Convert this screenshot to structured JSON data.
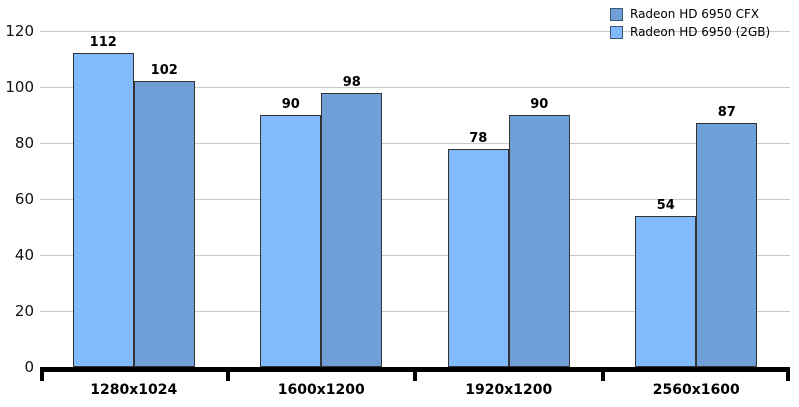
{
  "chart_data": {
    "type": "bar",
    "title": "",
    "xlabel": "",
    "ylabel": "",
    "categories": [
      "1280x1024",
      "1600x1200",
      "1920x1200",
      "2560x1600"
    ],
    "series": [
      {
        "name": "Radeon HD 6950 (2GB)",
        "color": "#82BBFD",
        "values": [
          112,
          90,
          78,
          54
        ]
      },
      {
        "name": "Radeon HD 6950 CFX",
        "color": "#6EA0D7",
        "values": [
          102,
          98,
          90,
          87
        ]
      }
    ],
    "value_labels": [
      [
        112,
        90,
        78,
        54
      ],
      [
        102,
        98,
        90,
        87
      ]
    ],
    "y_axis": {
      "min": 0,
      "max": 120,
      "ticks": [
        0,
        20,
        40,
        60,
        80,
        100,
        120
      ]
    },
    "grid": true,
    "legend": {
      "position": "top-right",
      "entries": [
        {
          "label": "Radeon HD 6950 CFX",
          "color": "#6EA0D7"
        },
        {
          "label": "Radeon HD 6950 (2GB)",
          "color": "#82BBFD"
        }
      ]
    }
  },
  "colors": {
    "background": "#FFFFFF",
    "gridline": "#C9C9C9",
    "axis": "#000000",
    "bar_border": "#333333",
    "text": "#000000"
  }
}
